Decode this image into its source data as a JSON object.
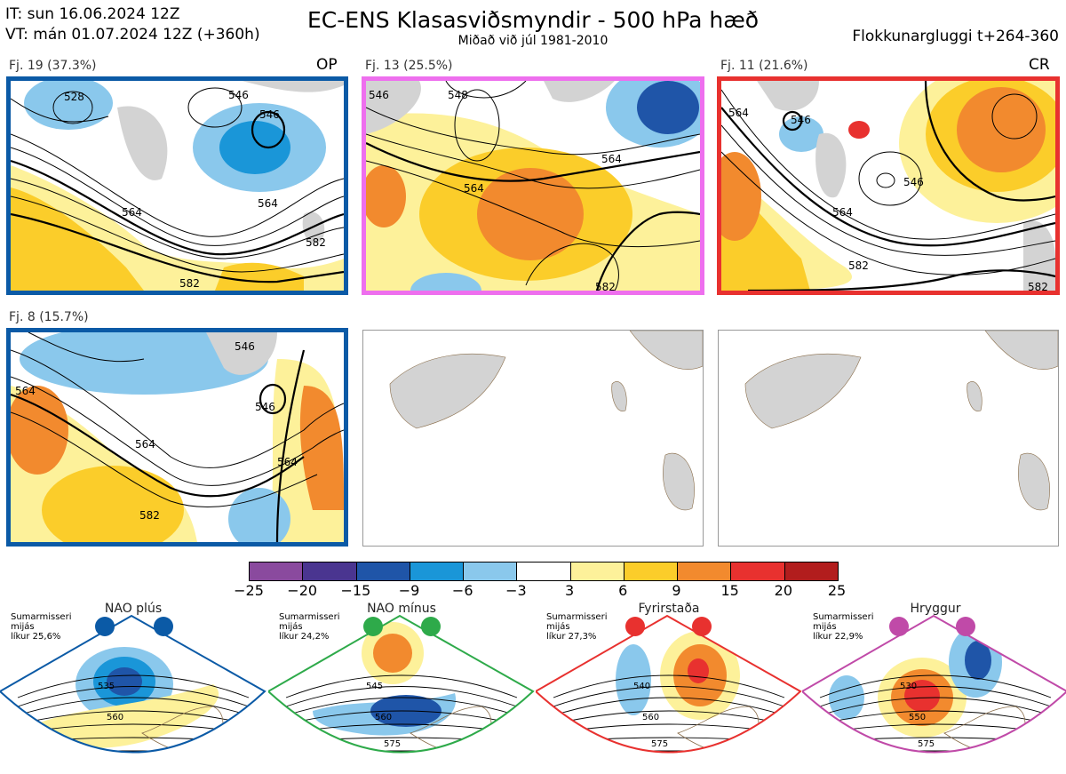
{
  "header": {
    "it_line": "IT: sun 16.06.2024 12Z",
    "vt_line": "VT: mán 01.07.2024 12Z  (+360h)",
    "title": "EC-ENS Klasasviðsmyndir - 500 hPa hæð",
    "subtitle": "Miðað við júl 1981-2010",
    "window": "Flokkunargluggi t+264-360"
  },
  "panels": [
    {
      "label": "Fj. 19 (37.3%)",
      "tag": "OP",
      "border": "#0b5aa6",
      "contours": [
        "528",
        "546",
        "546",
        "564",
        "564",
        "582",
        "582"
      ]
    },
    {
      "label": "Fj. 13 (25.5%)",
      "tag": "",
      "border": "#ee6fee",
      "contours": [
        "546",
        "548",
        "564",
        "564",
        "582"
      ]
    },
    {
      "label": "Fj. 11 (21.6%)",
      "tag": "CR",
      "border": "#e8312f",
      "contours": [
        "564",
        "546",
        "546",
        "564",
        "582",
        "582"
      ]
    },
    {
      "label": "Fj. 8 (15.7%)",
      "tag": "",
      "border": "#0b5aa6",
      "contours": [
        "546",
        "546",
        "564",
        "564",
        "582",
        "564"
      ]
    }
  ],
  "colorbar": {
    "colors": [
      "#8a4a9e",
      "#4a3590",
      "#1f55a8",
      "#1a96d8",
      "#8ac8ec",
      "#ffffff",
      "#fdf19a",
      "#fbcd2a",
      "#f28a2e",
      "#e8312f",
      "#b21d1d"
    ],
    "ticks": [
      "−25",
      "−20",
      "−15",
      "−9",
      "−6",
      "−3",
      "3",
      "6",
      "9",
      "15",
      "20",
      "25"
    ]
  },
  "regimes": [
    {
      "name": "NAO plús",
      "season": "Sumarmisseri",
      "season2": "mijás",
      "prob": "líkur 25,6%",
      "color": "#0b5aa6",
      "labels": [
        "535",
        "560"
      ]
    },
    {
      "name": "NAO mínus",
      "season": "Sumarmisseri",
      "season2": "mijás",
      "prob": "líkur 24,2%",
      "color": "#2eaa4a",
      "labels": [
        "545",
        "560",
        "575"
      ]
    },
    {
      "name": "Fyrirstaða",
      "season": "Sumarmisseri",
      "season2": "mijás",
      "prob": "líkur 27,3%",
      "color": "#e8312f",
      "labels": [
        "540",
        "560",
        "575"
      ]
    },
    {
      "name": "Hryggur",
      "season": "Sumarmisseri",
      "season2": "mijás",
      "prob": "líkur 22,9%",
      "color": "#c04aa8",
      "labels": [
        "530",
        "550",
        "575"
      ]
    }
  ]
}
